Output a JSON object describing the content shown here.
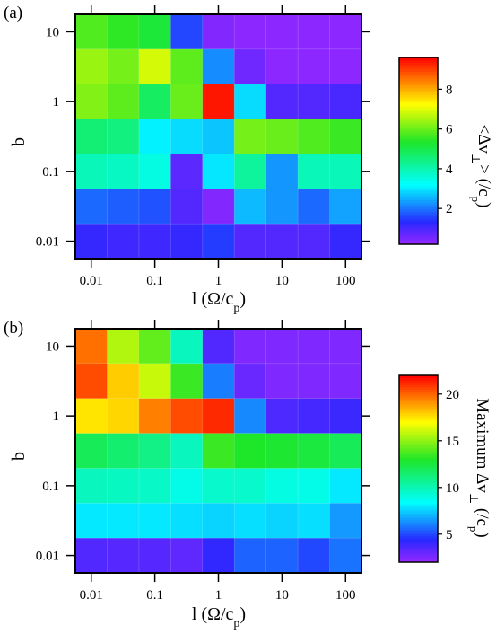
{
  "chart_data": [
    {
      "type": "heatmap",
      "panel_label": "(a)",
      "xlabel": "l (Ω/c_p)",
      "ylabel": "b",
      "x_tick_labels": [
        "0.01",
        "0.1",
        "1",
        "10",
        "100"
      ],
      "y_tick_labels": [
        "10",
        "1",
        "0.1",
        "0.01"
      ],
      "x": [
        0.01,
        0.0316,
        0.1,
        0.316,
        1,
        3.16,
        10,
        31.6,
        100
      ],
      "y": [
        10,
        3.16,
        1,
        0.316,
        0.1,
        0.0316,
        0.01
      ],
      "x_scale": "log",
      "y_scale": "log",
      "colorbar": {
        "label": "<Δv_⊥> (/c_p)",
        "ticks": [
          2,
          4,
          6,
          8
        ],
        "range": [
          0.2,
          9.6
        ],
        "colormap": "rainbow"
      },
      "values": [
        [
          5.8,
          5.5,
          5.2,
          1.6,
          0.4,
          0.3,
          0.3,
          0.3,
          0.3
        ],
        [
          6.4,
          6.1,
          6.9,
          5.9,
          2.2,
          0.6,
          0.3,
          0.3,
          0.3
        ],
        [
          6.2,
          5.9,
          4.8,
          6.0,
          9.4,
          2.9,
          0.9,
          0.9,
          1.0
        ],
        [
          4.6,
          4.5,
          3.1,
          2.9,
          2.7,
          6.1,
          6.0,
          5.8,
          5.6
        ],
        [
          3.9,
          3.8,
          3.5,
          0.8,
          3.0,
          4.2,
          2.3,
          3.9,
          3.9
        ],
        [
          1.9,
          1.8,
          1.7,
          0.9,
          0.4,
          2.6,
          2.3,
          1.9,
          2.4
        ],
        [
          1.2,
          1.1,
          1.1,
          1.2,
          1.5,
          0.9,
          0.9,
          0.9,
          1.2
        ]
      ]
    },
    {
      "type": "heatmap",
      "panel_label": "(b)",
      "xlabel": "l (Ω/c_p)",
      "ylabel": "b",
      "x_tick_labels": [
        "0.01",
        "0.1",
        "1",
        "10",
        "100"
      ],
      "y_tick_labels": [
        "10",
        "1",
        "0.1",
        "0.01"
      ],
      "x": [
        0.01,
        0.0316,
        0.1,
        0.316,
        1,
        3.16,
        10,
        31.6,
        100
      ],
      "y": [
        10,
        3.16,
        1,
        0.316,
        0.1,
        0.0316,
        0.01
      ],
      "x_scale": "log",
      "y_scale": "log",
      "colorbar": {
        "label": "Maximum Δv_⊥ (/c_p)",
        "ticks": [
          5,
          10,
          15,
          20
        ],
        "range": [
          2,
          22
        ],
        "colormap": "rainbow"
      },
      "values": [
        [
          19.8,
          15.6,
          14.2,
          9.8,
          3.5,
          2.5,
          2.5,
          2.5,
          2.5
        ],
        [
          20.5,
          18.0,
          16.0,
          13.5,
          6.0,
          3.0,
          2.5,
          2.5,
          2.5
        ],
        [
          17.5,
          17.8,
          19.5,
          20.5,
          21.2,
          6.2,
          3.6,
          3.8,
          4.0
        ],
        [
          12.0,
          11.5,
          11.0,
          9.8,
          13.5,
          13.0,
          12.8,
          12.5,
          12.0
        ],
        [
          9.8,
          9.7,
          9.6,
          8.9,
          9.5,
          9.5,
          9.0,
          8.9,
          8.0
        ],
        [
          8.0,
          8.0,
          8.0,
          7.8,
          7.6,
          7.8,
          7.6,
          7.8,
          6.5
        ],
        [
          3.5,
          3.4,
          3.4,
          3.2,
          4.2,
          5.5,
          5.5,
          5.0,
          5.8
        ]
      ]
    }
  ]
}
